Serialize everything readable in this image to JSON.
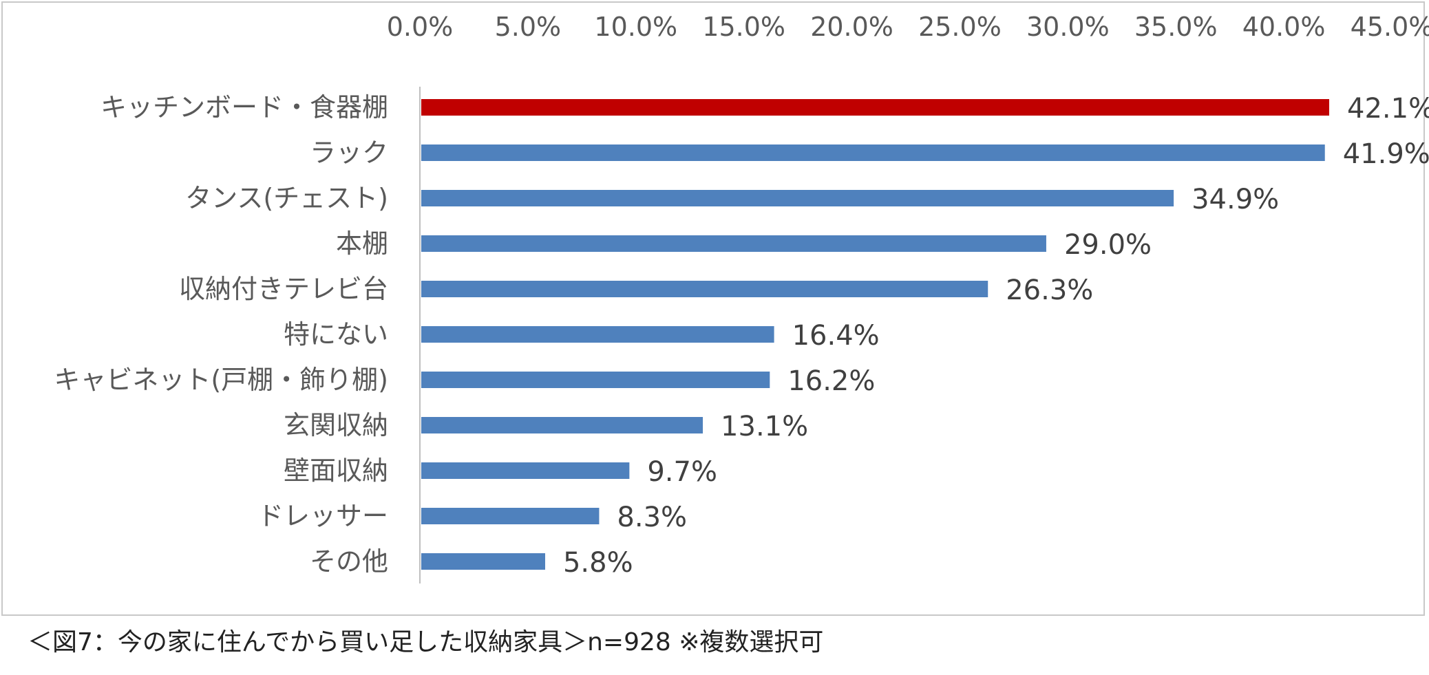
{
  "chart_data": {
    "type": "bar",
    "orientation": "horizontal",
    "categories": [
      "キッチンボード・食器棚",
      "ラック",
      "タンス(チェスト)",
      "本棚",
      "収納付きテレビ台",
      "特にない",
      "キャビネット(戸棚・飾り棚)",
      "玄関収納",
      "壁面収納",
      "ドレッサー",
      "その他"
    ],
    "values": [
      42.1,
      41.9,
      34.9,
      29.0,
      26.3,
      16.4,
      16.2,
      13.1,
      9.7,
      8.3,
      5.8
    ],
    "value_labels": [
      "42.1%",
      "41.9%",
      "34.9%",
      "29.0%",
      "26.3%",
      "16.4%",
      "16.2%",
      "13.1%",
      "9.7%",
      "8.3%",
      "5.8%"
    ],
    "x_ticks": [
      "0.0%",
      "5.0%",
      "10.0%",
      "15.0%",
      "20.0%",
      "25.0%",
      "30.0%",
      "35.0%",
      "40.0%",
      "45.0%"
    ],
    "xlim": [
      0,
      45
    ],
    "axis_position": "top",
    "grid": false,
    "colors": {
      "highlight": "#C00000",
      "bar": "#4F81BD",
      "axis": "#BFBFBF"
    },
    "highlight_index": 0
  },
  "caption": "＜図7：今の家に住んでから買い足した収納家具＞n=928 ※複数選択可"
}
